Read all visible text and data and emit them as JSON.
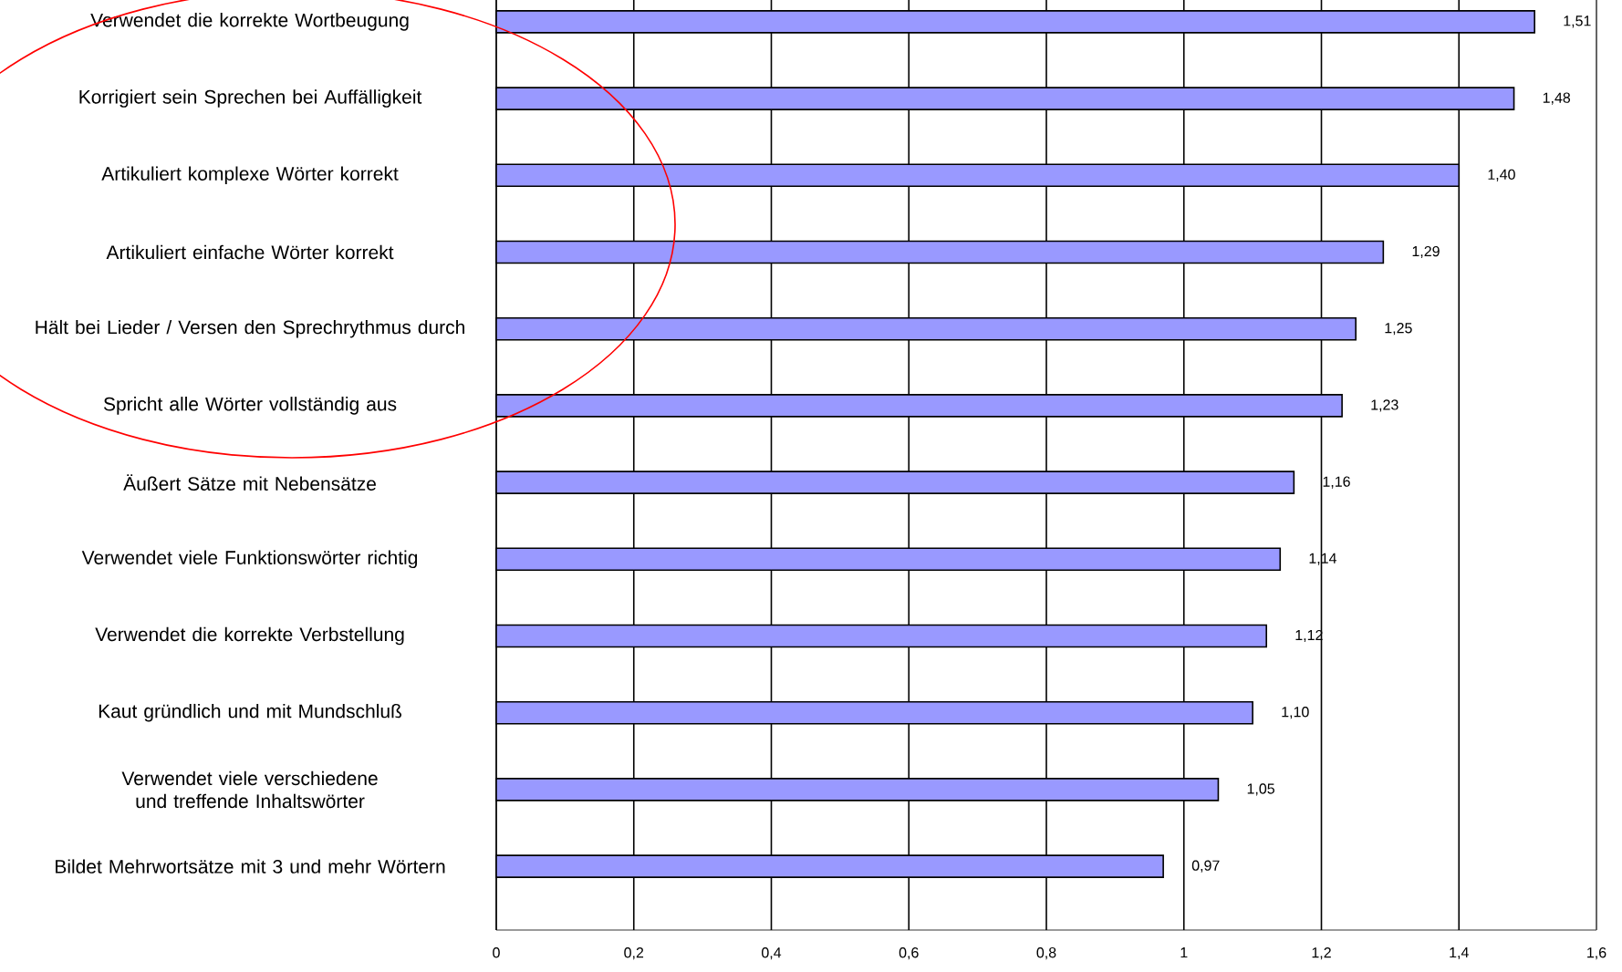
{
  "chart_data": {
    "type": "bar",
    "orientation": "horizontal",
    "categories": [
      "Verwendet die korrekte Wortbeugung",
      "Korrigiert sein Sprechen bei Auffälligkeit",
      "Artikuliert komplexe Wörter korrekt",
      "Artikuliert einfache Wörter korrekt",
      "Hält bei Lieder / Versen den Sprechrythmus durch",
      "Spricht alle Wörter vollständig aus",
      "Äußert Sätze mit Nebensätze",
      "Verwendet viele Funktionswörter richtig",
      "Verwendet die korrekte Verbstellung",
      "Kaut gründlich und mit Mundschluß",
      "Verwendet viele verschiedene und treffende Inhaltswörter",
      "Bildet Mehrwortsätze mit 3 und mehr Wörtern"
    ],
    "values": [
      1.51,
      1.48,
      1.4,
      1.29,
      1.25,
      1.23,
      1.16,
      1.14,
      1.12,
      1.1,
      1.05,
      0.97
    ],
    "value_labels": [
      "1,51",
      "1,48",
      "1,40",
      "1,29",
      "1,25",
      "1,23",
      "1,16",
      "1,14",
      "1,12",
      "1,10",
      "1,05",
      "0,97"
    ],
    "color": "#9999ff",
    "xlim": [
      0,
      1.6
    ],
    "xticks": [
      0,
      {
        "value": 0.2,
        "label": "0,2"
      },
      {
        "value": 0.4,
        "label": "0,4"
      },
      {
        "value": 0.6,
        "label": "0,6"
      },
      {
        "value": 0.8,
        "label": "0,8"
      },
      1,
      {
        "value": 1.2,
        "label": "1,2"
      },
      {
        "value": 1.4,
        "label": "1,4"
      },
      {
        "value": 1.6,
        "label": "1,6"
      }
    ],
    "grid": "x"
  }
}
